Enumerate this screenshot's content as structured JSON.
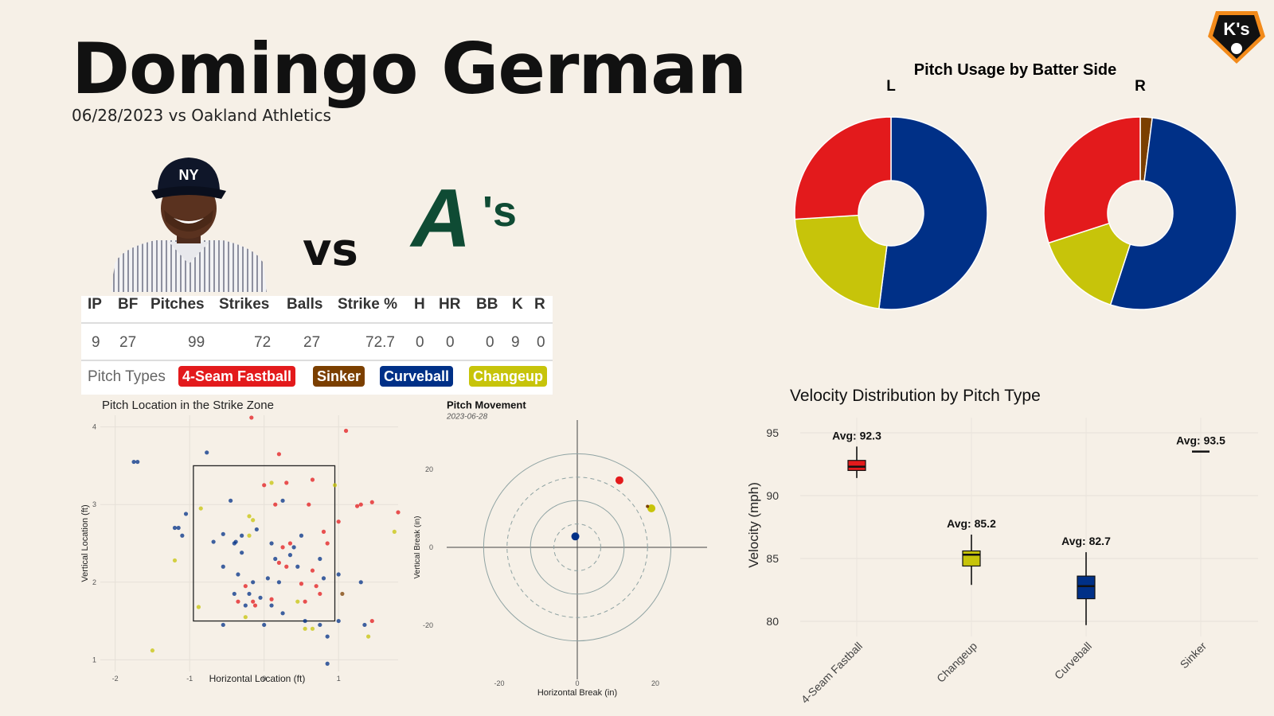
{
  "header": {
    "title": "Domingo German",
    "subtitle": "06/28/2023 vs Oakland Athletics",
    "vs_label": "vs",
    "brand_logo_text": "K's",
    "team_logo_text": "A's"
  },
  "colors": {
    "four_seam": "#e31a1c",
    "sinker": "#7b3f00",
    "curveball": "#003087",
    "changeup": "#c7c40a",
    "background": "#f6f0e7"
  },
  "stats_table": {
    "headers": [
      "IP",
      "BF",
      "Pitches",
      "Strikes",
      "Balls",
      "Strike %",
      "H",
      "HR",
      "BB",
      "K",
      "R"
    ],
    "values": [
      "9",
      "27",
      "99",
      "72",
      "27",
      "72.7",
      "0",
      "0",
      "0",
      "9",
      "0"
    ],
    "pitch_types_label": "Pitch Types",
    "pitch_types": [
      {
        "name": "4-Seam Fastball",
        "color": "#e31a1c"
      },
      {
        "name": "Sinker",
        "color": "#7b3f00"
      },
      {
        "name": "Curveball",
        "color": "#003087"
      },
      {
        "name": "Changeup",
        "color": "#c7c40a"
      }
    ]
  },
  "chart_data": [
    {
      "id": "pitch-usage",
      "type": "pie",
      "title": "Pitch Usage by Batter Side",
      "panels": [
        {
          "label": "L",
          "slices": [
            {
              "name": "Curveball",
              "value": 52,
              "color": "#003087"
            },
            {
              "name": "Changeup",
              "value": 22,
              "color": "#c7c40a"
            },
            {
              "name": "4-Seam Fastball",
              "value": 26,
              "color": "#e31a1c"
            }
          ]
        },
        {
          "label": "R",
          "slices": [
            {
              "name": "Sinker",
              "value": 2,
              "color": "#7b3f00"
            },
            {
              "name": "Curveball",
              "value": 53,
              "color": "#003087"
            },
            {
              "name": "Changeup",
              "value": 15,
              "color": "#c7c40a"
            },
            {
              "name": "4-Seam Fastball",
              "value": 30,
              "color": "#e31a1c"
            }
          ]
        }
      ]
    },
    {
      "id": "strike-zone",
      "type": "scatter",
      "title": "Pitch Location in the Strike Zone",
      "xlabel": "Horizontal Location (ft)",
      "ylabel": "Vertical Location (ft)",
      "xlim": [
        -2.2,
        1.8
      ],
      "ylim": [
        0.85,
        4.15
      ],
      "xticks": [
        -2,
        -1,
        0,
        1
      ],
      "yticks": [
        1,
        2,
        3,
        4
      ],
      "zone": {
        "x": [
          -0.95,
          0.95
        ],
        "y": [
          1.5,
          3.5
        ]
      },
      "points": [
        [
          -1.7,
          3.55,
          "curveball"
        ],
        [
          -0.77,
          3.67,
          "curveball"
        ],
        [
          -1.05,
          2.88,
          "curveball"
        ],
        [
          -1.15,
          2.7,
          "curveball"
        ],
        [
          -1.2,
          2.7,
          "curveball"
        ],
        [
          -1.1,
          2.6,
          "curveball"
        ],
        [
          -0.45,
          3.05,
          "curveball"
        ],
        [
          -0.68,
          2.52,
          "curveball"
        ],
        [
          -0.55,
          2.62,
          "curveball"
        ],
        [
          -0.4,
          2.5,
          "curveball"
        ],
        [
          -0.38,
          2.52,
          "curveball"
        ],
        [
          -0.3,
          2.6,
          "curveball"
        ],
        [
          -0.1,
          2.68,
          "curveball"
        ],
        [
          -0.3,
          2.38,
          "curveball"
        ],
        [
          0.1,
          2.5,
          "curveball"
        ],
        [
          -0.55,
          2.2,
          "curveball"
        ],
        [
          -0.35,
          2.1,
          "curveball"
        ],
        [
          -0.15,
          2.0,
          "curveball"
        ],
        [
          0.05,
          2.05,
          "curveball"
        ],
        [
          0.2,
          2.0,
          "curveball"
        ],
        [
          0.5,
          2.6,
          "curveball"
        ],
        [
          0.45,
          2.2,
          "curveball"
        ],
        [
          0.75,
          2.3,
          "curveball"
        ],
        [
          0.8,
          2.05,
          "curveball"
        ],
        [
          1.0,
          2.1,
          "curveball"
        ],
        [
          1.3,
          2.0,
          "curveball"
        ],
        [
          -0.55,
          1.45,
          "curveball"
        ],
        [
          -0.25,
          1.7,
          "curveball"
        ],
        [
          -0.05,
          1.8,
          "curveball"
        ],
        [
          0.1,
          1.7,
          "curveball"
        ],
        [
          0.25,
          1.6,
          "curveball"
        ],
        [
          0.0,
          1.45,
          "curveball"
        ],
        [
          0.35,
          2.35,
          "curveball"
        ],
        [
          0.55,
          1.5,
          "curveball"
        ],
        [
          0.75,
          1.45,
          "curveball"
        ],
        [
          0.85,
          1.3,
          "curveball"
        ],
        [
          1.0,
          1.5,
          "curveball"
        ],
        [
          1.35,
          1.45,
          "curveball"
        ],
        [
          0.85,
          0.95,
          "curveball"
        ],
        [
          -0.4,
          1.85,
          "curveball"
        ],
        [
          0.25,
          3.05,
          "curveball"
        ],
        [
          -0.2,
          1.85,
          "curveball"
        ],
        [
          -1.75,
          3.55,
          "curveball"
        ],
        [
          0.4,
          2.45,
          "curveball"
        ],
        [
          0.15,
          2.3,
          "curveball"
        ],
        [
          0.2,
          3.65,
          "four_seam"
        ],
        [
          -0.17,
          4.12,
          "four_seam"
        ],
        [
          1.1,
          3.95,
          "four_seam"
        ],
        [
          0.0,
          3.25,
          "four_seam"
        ],
        [
          0.3,
          3.28,
          "four_seam"
        ],
        [
          0.65,
          3.32,
          "four_seam"
        ],
        [
          0.15,
          3.0,
          "four_seam"
        ],
        [
          0.6,
          3.0,
          "four_seam"
        ],
        [
          1.0,
          2.78,
          "four_seam"
        ],
        [
          1.25,
          2.98,
          "four_seam"
        ],
        [
          1.3,
          3.0,
          "four_seam"
        ],
        [
          1.45,
          3.03,
          "four_seam"
        ],
        [
          1.8,
          2.9,
          "four_seam"
        ],
        [
          0.8,
          2.65,
          "four_seam"
        ],
        [
          0.25,
          2.45,
          "four_seam"
        ],
        [
          0.35,
          2.5,
          "four_seam"
        ],
        [
          0.2,
          2.25,
          "four_seam"
        ],
        [
          0.65,
          2.15,
          "four_seam"
        ],
        [
          0.7,
          1.95,
          "four_seam"
        ],
        [
          0.75,
          1.85,
          "four_seam"
        ],
        [
          0.5,
          1.98,
          "four_seam"
        ],
        [
          -0.25,
          1.95,
          "four_seam"
        ],
        [
          -0.35,
          1.75,
          "four_seam"
        ],
        [
          0.1,
          1.78,
          "four_seam"
        ],
        [
          0.55,
          1.75,
          "four_seam"
        ],
        [
          1.45,
          1.5,
          "four_seam"
        ],
        [
          0.85,
          2.5,
          "four_seam"
        ],
        [
          -0.15,
          1.75,
          "four_seam"
        ],
        [
          0.3,
          2.2,
          "four_seam"
        ],
        [
          -0.12,
          1.7,
          "four_seam"
        ],
        [
          0.1,
          3.28,
          "changeup"
        ],
        [
          0.95,
          3.25,
          "changeup"
        ],
        [
          -0.85,
          2.95,
          "changeup"
        ],
        [
          -0.2,
          2.85,
          "changeup"
        ],
        [
          -0.15,
          2.8,
          "changeup"
        ],
        [
          -1.2,
          2.28,
          "changeup"
        ],
        [
          -0.2,
          2.6,
          "changeup"
        ],
        [
          -0.88,
          1.68,
          "changeup"
        ],
        [
          -0.25,
          1.55,
          "changeup"
        ],
        [
          0.45,
          1.75,
          "changeup"
        ],
        [
          0.55,
          1.4,
          "changeup"
        ],
        [
          1.4,
          1.3,
          "changeup"
        ],
        [
          1.75,
          2.65,
          "changeup"
        ],
        [
          -1.5,
          1.12,
          "changeup"
        ],
        [
          0.65,
          1.4,
          "changeup"
        ],
        [
          1.05,
          1.85,
          "sinker"
        ]
      ]
    },
    {
      "id": "pitch-movement",
      "type": "scatter",
      "title": "Pitch Movement",
      "subtitle": "2023-06-28",
      "xlabel": "Horizontal Break (in)",
      "ylabel": "Vertical Break (in)",
      "xticks": [
        -20,
        0,
        20
      ],
      "yticks": [
        -20,
        0,
        20
      ],
      "points": [
        {
          "pitch": "curveball",
          "x": -0.5,
          "y": 2.8
        },
        {
          "pitch": "four_seam",
          "x": 10.8,
          "y": 17.2
        },
        {
          "pitch": "changeup",
          "x": 19.0,
          "y": 10.0
        },
        {
          "pitch": "sinker",
          "x": 18.0,
          "y": 10.5
        }
      ]
    },
    {
      "id": "velocity",
      "type": "box",
      "title": "Velocity Distribution by Pitch Type",
      "ylabel": "Velocity (mph)",
      "ylim": [
        78.8,
        96.2
      ],
      "yticks": [
        80,
        85,
        90,
        95
      ],
      "categories": [
        "4-Seam Fastball",
        "Changeup",
        "Curveball",
        "Sinker"
      ],
      "boxes": [
        {
          "pitch": "four_seam",
          "min": 91.4,
          "q1": 92.0,
          "median": 92.3,
          "q3": 92.8,
          "max": 93.9,
          "avg_label": "Avg: 92.3"
        },
        {
          "pitch": "changeup",
          "min": 82.9,
          "q1": 84.4,
          "median": 85.3,
          "q3": 85.6,
          "max": 86.9,
          "avg_label": "Avg: 85.2"
        },
        {
          "pitch": "curveball",
          "min": 79.7,
          "q1": 81.8,
          "median": 82.8,
          "q3": 83.6,
          "max": 85.5,
          "avg_label": "Avg: 82.7"
        },
        {
          "pitch": "sinker",
          "min": 93.5,
          "q1": 93.5,
          "median": 93.5,
          "q3": 93.5,
          "max": 93.5,
          "avg_label": "Avg: 93.5"
        }
      ]
    }
  ]
}
